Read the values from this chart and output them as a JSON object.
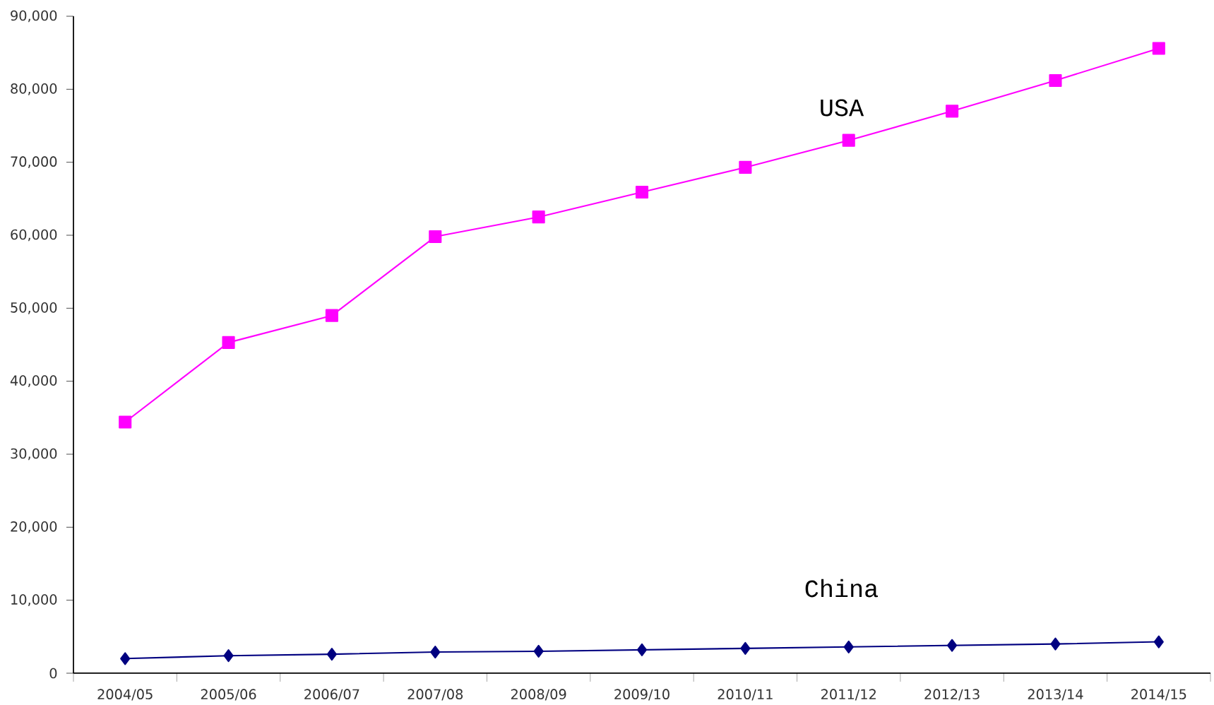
{
  "chart_data": {
    "type": "line",
    "categories": [
      "2004/05",
      "2005/06",
      "2006/07",
      "2007/08",
      "2008/09",
      "2009/10",
      "2010/11",
      "2011/12",
      "2012/13",
      "2013/14",
      "2014/15"
    ],
    "series": [
      {
        "name": "USA",
        "color": "#ff00ff",
        "marker": "square",
        "values": [
          34400,
          45300,
          49000,
          59800,
          62500,
          65900,
          69300,
          73000,
          77000,
          81200,
          85600
        ]
      },
      {
        "name": "China",
        "color": "#000080",
        "marker": "diamond",
        "values": [
          2000,
          2400,
          2600,
          2900,
          3000,
          3200,
          3400,
          3600,
          3800,
          4000,
          4300
        ]
      }
    ],
    "ylim": [
      0,
      90000
    ],
    "yticks": [
      0,
      {
        "value": 10000,
        "label": "10,000"
      },
      {
        "value": 20000,
        "label": "20,000"
      },
      {
        "value": 30000,
        "label": "30,000"
      },
      {
        "value": 40000,
        "label": "40,000"
      },
      {
        "value": 50000,
        "label": "50,000"
      },
      {
        "value": 60000,
        "label": "60,000"
      },
      {
        "value": 70000,
        "label": "70,000"
      },
      {
        "value": 80000,
        "label": "80,000"
      },
      {
        "value": 90000,
        "label": "90,000"
      }
    ],
    "grid": false
  }
}
